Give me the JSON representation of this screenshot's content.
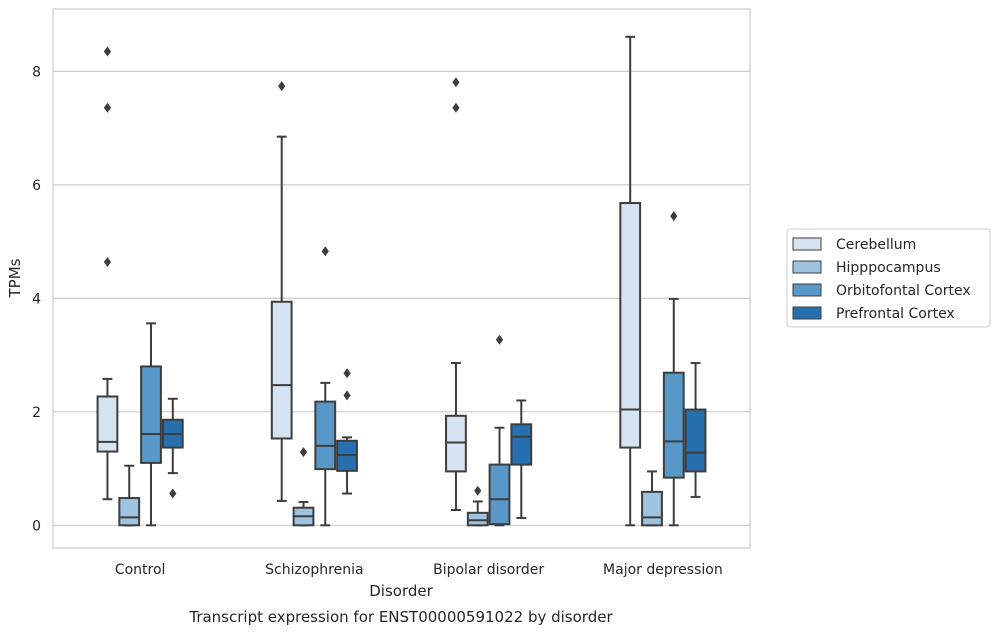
{
  "chart_data": {
    "type": "box",
    "xlabel": "Disorder",
    "ylabel": "TPMs",
    "caption": "Transcript expression for ENST00000591022 by disorder",
    "categories": [
      "Control",
      "Schizophrenia",
      "Bipolar disorder",
      "Major depression"
    ],
    "ylim": [
      -0.4,
      9.1
    ],
    "yticks": [
      0,
      2,
      4,
      6,
      8
    ],
    "grid": "horizontal",
    "legend_position": "right",
    "series": [
      {
        "name": "Cerebellum",
        "color": "#d5e3f2",
        "boxes": [
          {
            "whislo": 0.46,
            "q1": 1.3,
            "med": 1.47,
            "q3": 2.27,
            "whishi": 2.58,
            "fliers": [
              4.64,
              7.36,
              8.35
            ]
          },
          {
            "whislo": 0.43,
            "q1": 1.53,
            "med": 2.47,
            "q3": 3.94,
            "whishi": 6.85,
            "fliers": [
              7.74
            ]
          },
          {
            "whislo": 0.27,
            "q1": 0.95,
            "med": 1.46,
            "q3": 1.93,
            "whishi": 2.86,
            "fliers": [
              7.36,
              7.81
            ]
          },
          {
            "whislo": 0.0,
            "q1": 1.37,
            "med": 2.04,
            "q3": 5.68,
            "whishi": 8.61,
            "fliers": []
          }
        ]
      },
      {
        "name": "Hipppocampus",
        "color": "#9dc3e0",
        "boxes": [
          {
            "whislo": 0.0,
            "q1": 0.0,
            "med": 0.14,
            "q3": 0.48,
            "whishi": 1.05,
            "fliers": []
          },
          {
            "whislo": 0.0,
            "q1": 0.0,
            "med": 0.16,
            "q3": 0.31,
            "whishi": 0.41,
            "fliers": [
              1.29
            ]
          },
          {
            "whislo": 0.0,
            "q1": 0.0,
            "med": 0.09,
            "q3": 0.22,
            "whishi": 0.42,
            "fliers": [
              0.61
            ]
          },
          {
            "whislo": 0.0,
            "q1": 0.0,
            "med": 0.14,
            "q3": 0.59,
            "whishi": 0.95,
            "fliers": []
          }
        ]
      },
      {
        "name": "Orbitofontal Cortex",
        "color": "#5898c9",
        "boxes": [
          {
            "whislo": 0.0,
            "q1": 1.1,
            "med": 1.61,
            "q3": 2.8,
            "whishi": 3.56,
            "fliers": []
          },
          {
            "whislo": 0.0,
            "q1": 0.99,
            "med": 1.4,
            "q3": 2.18,
            "whishi": 2.51,
            "fliers": [
              4.83
            ]
          },
          {
            "whislo": 0.0,
            "q1": 0.02,
            "med": 0.46,
            "q3": 1.07,
            "whishi": 1.72,
            "fliers": [
              3.27
            ]
          },
          {
            "whislo": 0.0,
            "q1": 0.84,
            "med": 1.48,
            "q3": 2.69,
            "whishi": 3.99,
            "fliers": [
              5.45
            ]
          }
        ]
      },
      {
        "name": "Prefrontal Cortex",
        "color": "#2770b0",
        "boxes": [
          {
            "whislo": 0.92,
            "q1": 1.37,
            "med": 1.61,
            "q3": 1.86,
            "whishi": 2.23,
            "fliers": [
              0.56
            ]
          },
          {
            "whislo": 0.56,
            "q1": 0.96,
            "med": 1.24,
            "q3": 1.49,
            "whishi": 1.55,
            "fliers": [
              2.29,
              2.68
            ]
          },
          {
            "whislo": 0.13,
            "q1": 1.07,
            "med": 1.56,
            "q3": 1.78,
            "whishi": 2.2,
            "fliers": []
          },
          {
            "whislo": 0.5,
            "q1": 0.95,
            "med": 1.28,
            "q3": 2.04,
            "whishi": 2.86,
            "fliers": []
          }
        ]
      }
    ]
  }
}
